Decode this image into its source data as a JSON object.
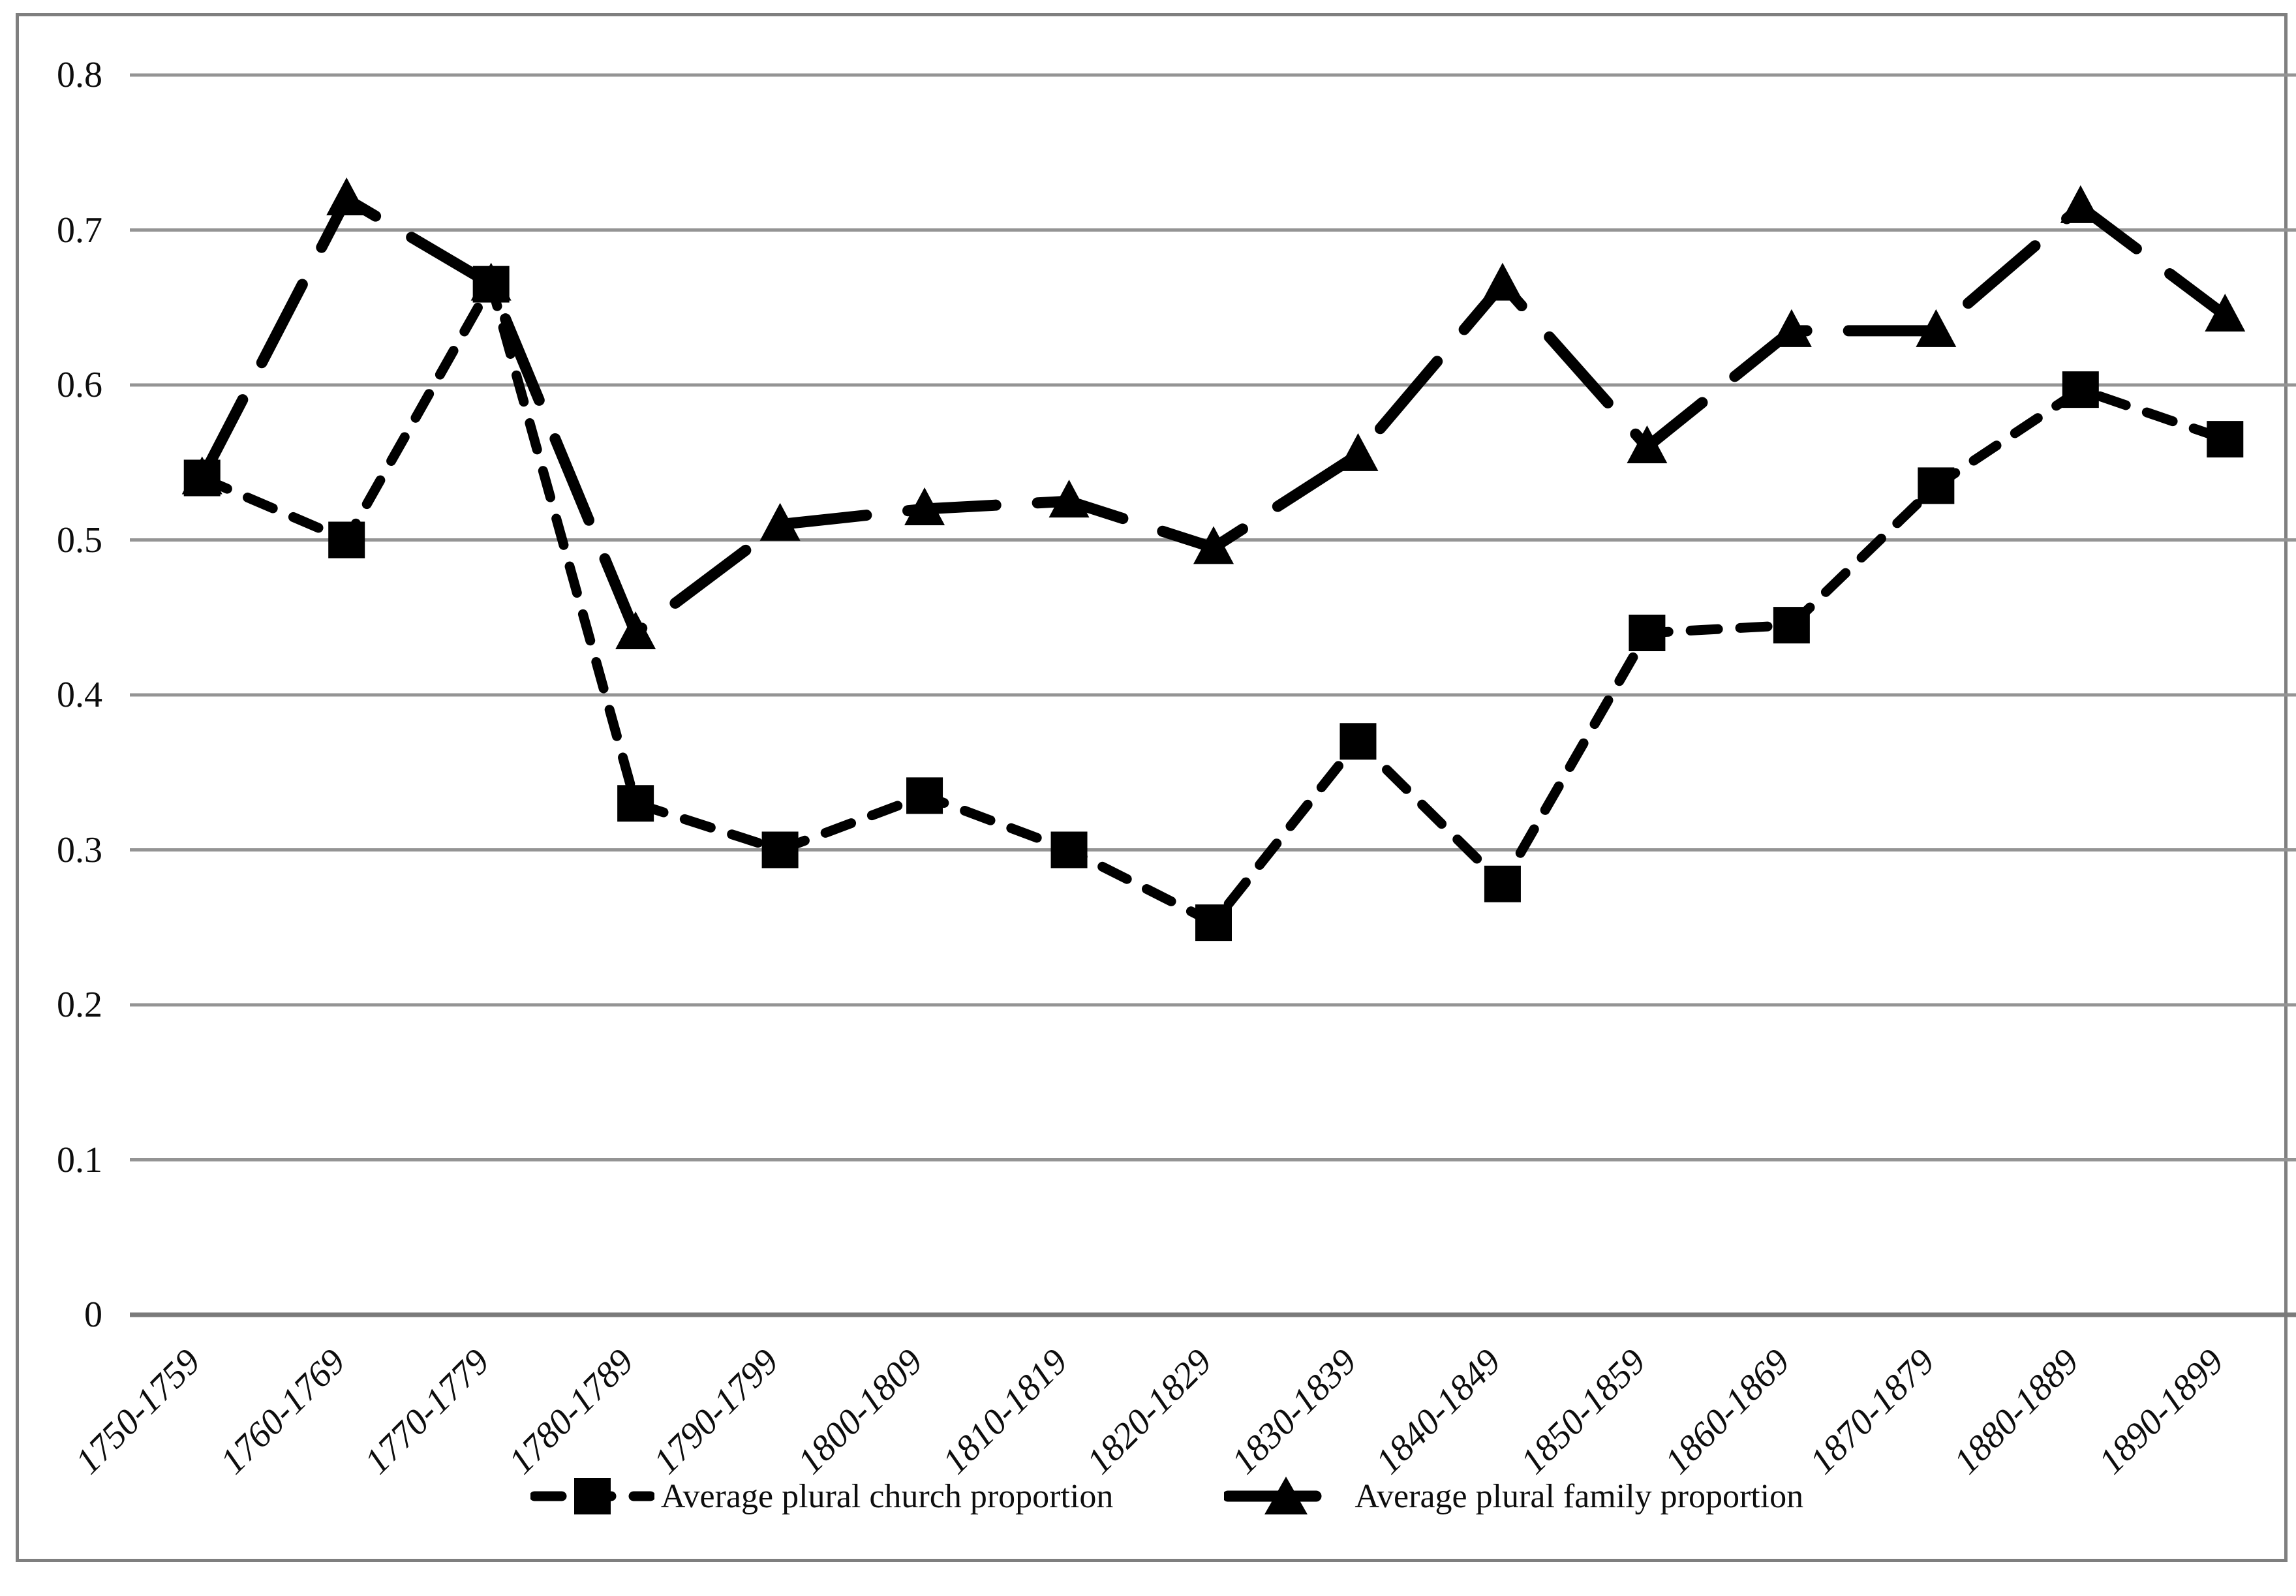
{
  "figure": {
    "background": "#ffffff",
    "frame_color": "#7f7f7f",
    "grid_color": "#949494",
    "axis_line_color": "#7a7a7a",
    "series_color": "#000000"
  },
  "y_axis": {
    "tick_labels": [
      "0",
      "0.1",
      "0.2",
      "0.3",
      "0.4",
      "0.5",
      "0.6",
      "0.7",
      "0.8"
    ]
  },
  "x_axis": {
    "tick_labels": [
      "1750-1759",
      "1760-1769",
      "1770-1779",
      "1780-1789",
      "1790-1799",
      "1800-1809",
      "1810-1819",
      "1820-1829",
      "1830-1839",
      "1840-1849",
      "1850-1859",
      "1860-1869",
      "1870-1879",
      "1880-1889",
      "1890-1899"
    ]
  },
  "legend": {
    "items": [
      {
        "label": "Average plural church proportion",
        "marker": "square"
      },
      {
        "label": "Average plural family proportion",
        "marker": "triangle"
      }
    ]
  },
  "chart_data": {
    "type": "line",
    "categories": [
      "1750-1759",
      "1760-1769",
      "1770-1779",
      "1780-1789",
      "1790-1799",
      "1800-1809",
      "1810-1819",
      "1820-1829",
      "1830-1839",
      "1840-1849",
      "1850-1859",
      "1860-1869",
      "1870-1879",
      "1880-1889",
      "1890-1899"
    ],
    "series": [
      {
        "name": "Average plural church proportion",
        "marker": "square",
        "line_style": "short-dash",
        "color": "#000000",
        "values": [
          0.54,
          0.5,
          0.665,
          0.33,
          0.3,
          0.335,
          0.3,
          0.253,
          0.37,
          0.278,
          0.44,
          0.445,
          0.535,
          0.597,
          0.565
        ]
      },
      {
        "name": "Average plural family proportion",
        "marker": "triangle",
        "line_style": "long-dash",
        "color": "#000000",
        "values": [
          0.54,
          0.72,
          0.665,
          0.44,
          0.51,
          0.52,
          0.525,
          0.495,
          0.555,
          0.665,
          0.56,
          0.635,
          0.635,
          0.715,
          0.645
        ]
      }
    ],
    "xlabel": "",
    "ylabel": "",
    "title": "",
    "ylim": [
      0,
      0.8
    ],
    "yticks": [
      0,
      0.1,
      0.2,
      0.3,
      0.4,
      0.5,
      0.6,
      0.7,
      0.8
    ],
    "grid": true,
    "legend_position": "bottom"
  }
}
